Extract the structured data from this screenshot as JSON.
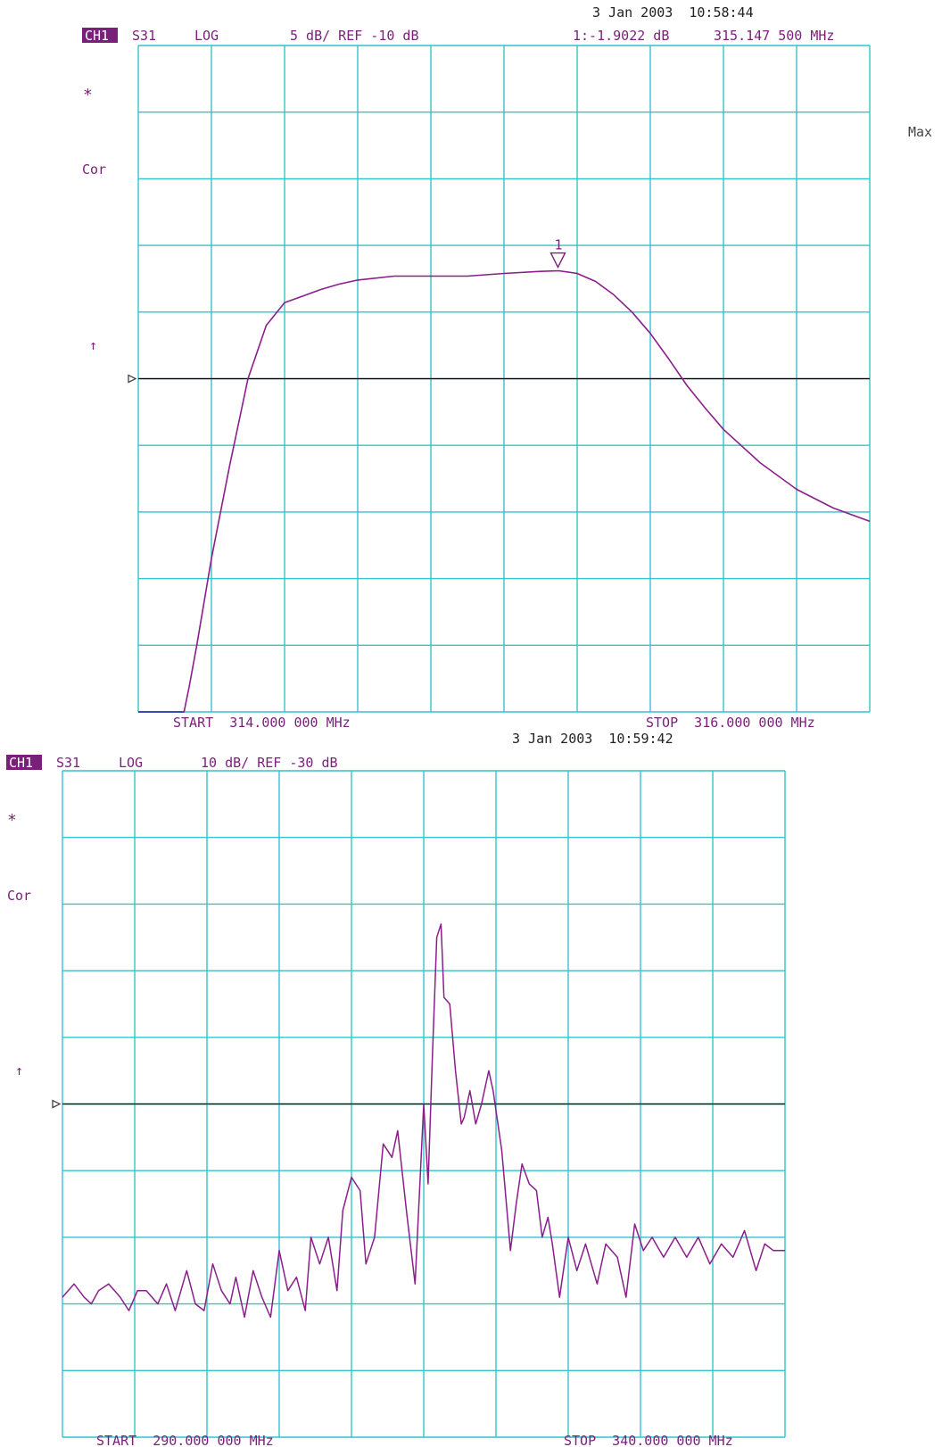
{
  "colors": {
    "grid": "#33c4cc",
    "trace": "#8a1f8a",
    "label": "#7a1f7a",
    "ref_line": "#000000",
    "text_dark": "#222222"
  },
  "chart_data": [
    {
      "type": "line",
      "timestamp": "3 Jan 2003  10:58:44",
      "channel": "CH1",
      "param": "S31",
      "format": "LOG",
      "scale_text": "5 dB/ REF -10 dB",
      "marker_text": "1:-1.9022 dB",
      "marker_freq": "315.147 500 MHz",
      "marker_label": "1",
      "star": "*",
      "cor": "Cor",
      "arrow": "↑",
      "max_label": "Max",
      "start_label": "START  314.000 000 MHz",
      "stop_label": "STOP  316.000 000 MHz",
      "xlim": [
        314.0,
        316.0
      ],
      "ylim": [
        -35,
        15
      ],
      "ref_level": -10,
      "grid": true,
      "divisions": [
        10,
        10
      ],
      "marker": {
        "x": 315.1475,
        "y": -1.9022
      },
      "series": [
        {
          "x": [
            314.0,
            314.125,
            314.14,
            314.16,
            314.2,
            314.25,
            314.3,
            314.35,
            314.4,
            314.45,
            314.5,
            314.55,
            314.6,
            314.7,
            314.8,
            314.9,
            315.0,
            315.1,
            315.15,
            315.2,
            315.25,
            315.3,
            315.35,
            315.4,
            315.45,
            315.5,
            315.55,
            315.6,
            315.7,
            315.8,
            315.9,
            315.95,
            316.0
          ],
          "y": [
            -35.0,
            -35.0,
            -33.0,
            -30.0,
            -23.5,
            -16.5,
            -10.0,
            -6.0,
            -4.3,
            -3.8,
            -3.3,
            -2.9,
            -2.6,
            -2.3,
            -2.3,
            -2.3,
            -2.1,
            -1.95,
            -1.9,
            -2.1,
            -2.7,
            -3.7,
            -5.0,
            -6.6,
            -8.5,
            -10.5,
            -12.2,
            -13.8,
            -16.3,
            -18.3,
            -19.7,
            -20.2,
            -20.7
          ]
        }
      ]
    },
    {
      "type": "line",
      "timestamp": "3 Jan 2003  10:59:42",
      "channel": "CH1",
      "param": "S31",
      "format": "LOG",
      "scale_text": "10 dB/ REF -30 dB",
      "star": "*",
      "cor": "Cor",
      "arrow": "↑",
      "start_label": "START  290.000 000 MHz",
      "stop_label": "STOP  340.000 000 MHz",
      "xlim": [
        290.0,
        340.0
      ],
      "ylim": [
        -80,
        20
      ],
      "ref_level": -30,
      "grid": true,
      "divisions": [
        10,
        10
      ],
      "series": [
        {
          "x": [
            290.0,
            290.8,
            291.5,
            292.0,
            292.5,
            293.2,
            294.0,
            294.6,
            295.2,
            295.8,
            296.6,
            297.2,
            297.8,
            298.6,
            299.2,
            299.8,
            300.4,
            301.0,
            301.6,
            302.0,
            302.6,
            303.2,
            303.8,
            304.4,
            305.0,
            305.6,
            306.2,
            306.8,
            307.2,
            307.8,
            308.4,
            309.0,
            309.4,
            310.0,
            310.6,
            311.0,
            311.6,
            312.2,
            312.8,
            313.2,
            313.8,
            314.4,
            315.0,
            315.3,
            315.6,
            315.9,
            316.2,
            316.4,
            316.8,
            317.2,
            317.6,
            317.8,
            318.2,
            318.6,
            319.0,
            319.5,
            319.8,
            320.4,
            321.0,
            321.4,
            321.8,
            322.3,
            322.8,
            323.2,
            323.6,
            323.9,
            324.4,
            325.0,
            325.6,
            326.2,
            327.0,
            327.6,
            328.4,
            329.0,
            329.6,
            330.2,
            330.8,
            331.6,
            332.4,
            333.2,
            334.0,
            334.8,
            335.6,
            336.4,
            337.2,
            338.0,
            338.6,
            339.2,
            340.0
          ],
          "y": [
            -59,
            -57,
            -59,
            -60,
            -58,
            -57,
            -59,
            -61,
            -58,
            -58,
            -60,
            -57,
            -61,
            -55,
            -60,
            -61,
            -54,
            -58,
            -60,
            -56,
            -62,
            -55,
            -59,
            -62,
            -52,
            -58,
            -56,
            -61,
            -50,
            -54,
            -50,
            -58,
            -46,
            -41,
            -43,
            -54,
            -50,
            -36,
            -38,
            -34,
            -46,
            -57,
            -30,
            -42,
            -23,
            -5,
            -3,
            -14,
            -15,
            -25,
            -33,
            -32,
            -28,
            -33,
            -30,
            -25,
            -28,
            -37,
            -52,
            -45,
            -39,
            -42,
            -43,
            -50,
            -47,
            -51,
            -59,
            -50,
            -55,
            -51,
            -57,
            -51,
            -53,
            -59,
            -48,
            -52,
            -50,
            -53,
            -50,
            -53,
            -50,
            -54,
            -51,
            -53,
            -49,
            -55,
            -51,
            -52,
            -52
          ]
        }
      ]
    }
  ]
}
